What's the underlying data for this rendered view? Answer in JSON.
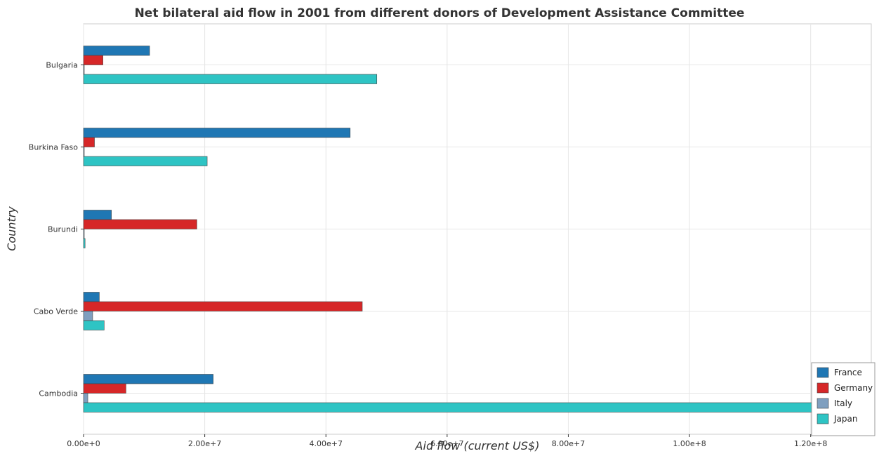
{
  "chart_data": {
    "type": "bar",
    "orientation": "horizontal",
    "title": "Net bilateral aid flow in 2001 from different donors of Development Assistance Committee",
    "xlabel": "Aid flow (current US$)",
    "ylabel": "Country",
    "categories": [
      "Bulgaria",
      "Burkina Faso",
      "Burundi",
      "Cabo Verde",
      "Cambodia"
    ],
    "xlim": [
      0,
      130000000
    ],
    "xticks": [
      0,
      20000000,
      40000000,
      60000000,
      80000000,
      100000000,
      120000000
    ],
    "xtick_labels": [
      "0.00e+0",
      "2.00e+7",
      "4.00e+7",
      "6.00e+7",
      "8.00e+7",
      "1.00e+8",
      "1.20e+8"
    ],
    "grid": true,
    "legend_position": "bottom-right",
    "series": [
      {
        "name": "France",
        "color": "#1f77b4",
        "values": [
          10900000,
          44000000,
          4600000,
          2600000,
          21400000
        ]
      },
      {
        "name": "Germany",
        "color": "#d62728",
        "values": [
          3200000,
          1800000,
          18700000,
          46000000,
          7000000
        ]
      },
      {
        "name": "Italy",
        "color": "#7f9fbf",
        "values": [
          20000,
          20000,
          20000,
          1500000,
          700000
        ]
      },
      {
        "name": "Japan",
        "color": "#2ec4c4",
        "values": [
          48400000,
          20400000,
          250000,
          3400000,
          120200000
        ]
      }
    ]
  }
}
